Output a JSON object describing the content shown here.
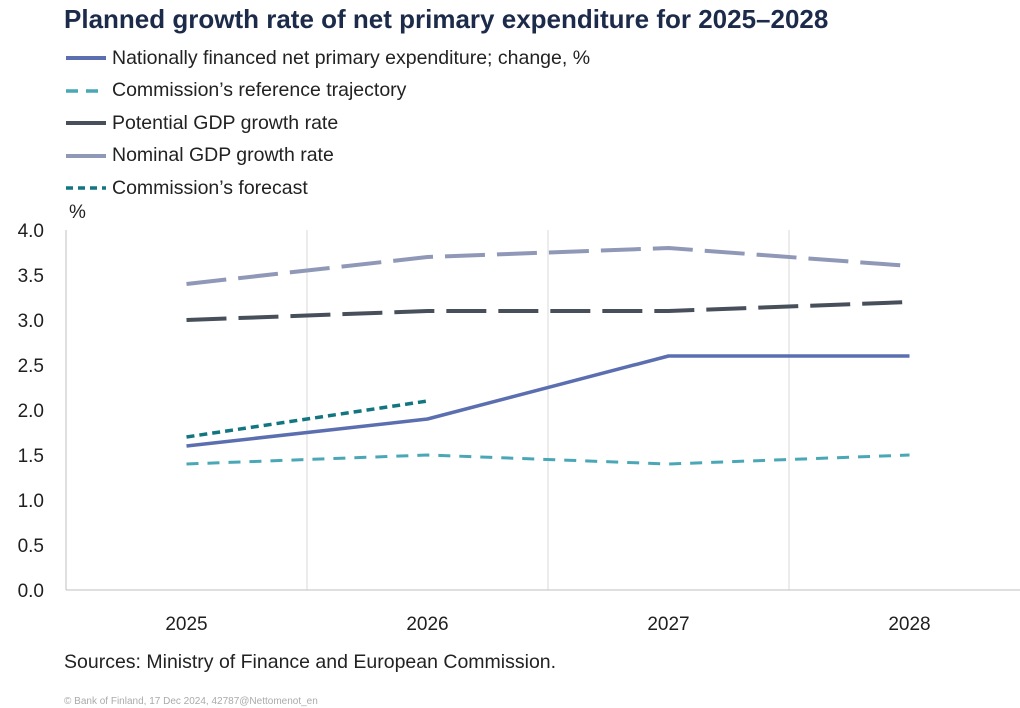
{
  "title": "Planned growth rate of net primary expenditure for 2025–2028",
  "sources": "Sources: Ministry of Finance and European Commission.",
  "copyright": "© Bank of Finland, 17 Dec 2024, 42787@Nettomenot_en",
  "chart_data": {
    "type": "line",
    "title": "Planned growth rate of net primary expenditure for 2025–2028",
    "ylabel": "%",
    "xlabel": "",
    "categories": [
      "2025",
      "2026",
      "2027",
      "2028"
    ],
    "ylim": [
      0,
      4.0
    ],
    "yticks": [
      "0.0",
      "0.5",
      "1.0",
      "1.5",
      "2.0",
      "2.5",
      "3.0",
      "3.5",
      "4.0"
    ],
    "grid": "vertical",
    "legend_position": "top-left",
    "series": [
      {
        "name": "Nationally financed net primary expenditure; change, %",
        "values": [
          1.6,
          1.9,
          2.6,
          2.6
        ],
        "color": "#5b6fb0",
        "style": "solid"
      },
      {
        "name": "Commission’s reference trajectory",
        "values": [
          1.4,
          1.5,
          1.4,
          1.5
        ],
        "color": "#4aa7b5",
        "style": "dashed"
      },
      {
        "name": "Potential GDP growth rate",
        "values": [
          3.0,
          3.1,
          3.1,
          3.2
        ],
        "color": "#474f5b",
        "style": "longdash"
      },
      {
        "name": "Nominal GDP growth rate",
        "values": [
          3.4,
          3.7,
          3.8,
          3.6
        ],
        "color": "#9098b8",
        "style": "longdash"
      },
      {
        "name": "Commission’s forecast",
        "values": [
          1.7,
          2.1,
          null,
          null
        ],
        "color": "#127580",
        "style": "dotted"
      }
    ]
  }
}
